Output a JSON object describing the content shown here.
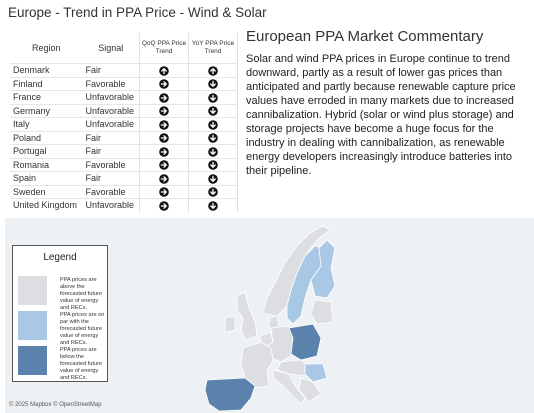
{
  "header": {
    "title": "Europe - Trend in PPA Price - Wind & Solar"
  },
  "table": {
    "columns": [
      "Region",
      "Signal",
      "QoQ PPA Price Trend",
      "YoY PPA Price Trend"
    ],
    "rows": [
      [
        "Denmark",
        "Fair",
        "up",
        "up"
      ],
      [
        "Finland",
        "Favorable",
        "right",
        "down"
      ],
      [
        "France",
        "Unfavorable",
        "right",
        "down"
      ],
      [
        "Germany",
        "Unfavorable",
        "right",
        "down"
      ],
      [
        "Italy",
        "Unfavorable",
        "right",
        "down"
      ],
      [
        "Poland",
        "Fair",
        "right",
        "down"
      ],
      [
        "Portugal",
        "Fair",
        "right",
        "down"
      ],
      [
        "Romania",
        "Favorable",
        "right",
        "down"
      ],
      [
        "Spain",
        "Fair",
        "right",
        "down"
      ],
      [
        "Sweden",
        "Favorable",
        "right",
        "down"
      ],
      [
        "United Kingdom",
        "Unfavorable",
        "right",
        "down"
      ]
    ]
  },
  "commentary": {
    "title": "European PPA Market Commentary",
    "body": "Solar and wind PPA prices in Europe continue to trend downward, partly as a result of lower gas prices than anticipated and partly because renewable capture price values have erroded in many markets due to increased cannibalization.  Hybrid (solar or wind plus storage) and storage projects have become a huge focus for the industry in dealing with cannibalization, as renewable energy developers increasingly introduce batteries into their pipeline."
  },
  "legend": {
    "title": "Legend",
    "items": [
      {
        "label": "PPA prices are above the forecasted future value of energy and RECs.",
        "color": "#dcdee2"
      },
      {
        "label": "PPA prices are on par with the forecasted future value of energy and RECs.",
        "color": "#a9c8e6"
      },
      {
        "label": "PPA prices are below the forecasted future value of energy and RECs.",
        "color": "#5b82ad"
      }
    ]
  },
  "credit": "© 2025 Mapbox © OpenStreetMap"
}
